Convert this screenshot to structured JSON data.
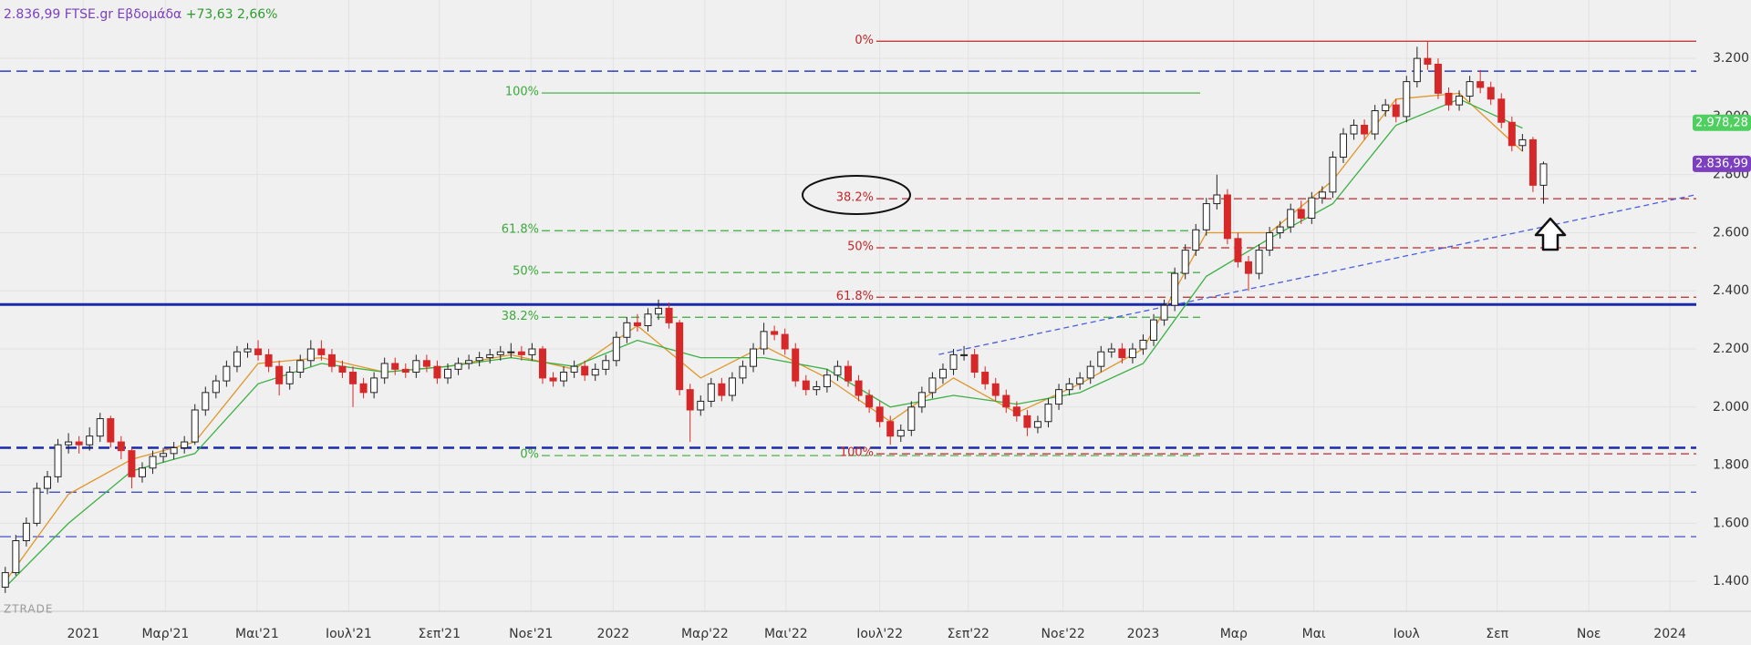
{
  "chart_data": {
    "type": "candlestick",
    "title": "2.836,99 FTSE.gr Εβδομάδα",
    "change_label": "+73,63 2,66%",
    "watermark": "ZTRADE",
    "title_color": "#7b3fbf",
    "change_color": "#2e9c2e",
    "up_color": "#ffffff",
    "down_color": "#d62828",
    "grid": true,
    "xlim": [
      -0.5,
      160.5
    ],
    "xticks": [
      {
        "value": 7.4,
        "label": "2021"
      },
      {
        "value": 15.2,
        "label": "Μαρ'21"
      },
      {
        "value": 23.9,
        "label": "Μαι'21"
      },
      {
        "value": 32.6,
        "label": "Ιουλ'21"
      },
      {
        "value": 41.2,
        "label": "Σεπ'21"
      },
      {
        "value": 49.9,
        "label": "Νοε'21"
      },
      {
        "value": 57.7,
        "label": "2022"
      },
      {
        "value": 66.4,
        "label": "Μαρ'22"
      },
      {
        "value": 74.1,
        "label": "Μαι'22"
      },
      {
        "value": 83.0,
        "label": "Ιουλ'22"
      },
      {
        "value": 91.4,
        "label": "Σεπ'22"
      },
      {
        "value": 100.4,
        "label": "Νοε'22"
      },
      {
        "value": 108,
        "label": "2023"
      },
      {
        "value": 116.6,
        "label": "Μαρ"
      },
      {
        "value": 124.2,
        "label": "Μαι"
      },
      {
        "value": 133,
        "label": "Ιουλ"
      },
      {
        "value": 141.6,
        "label": "Σεπ"
      },
      {
        "value": 150.3,
        "label": "Νοε"
      },
      {
        "value": 158,
        "label": "2024"
      }
    ],
    "ylim": [
      1297,
      3401
    ],
    "yticks": [
      {
        "value": 1400,
        "label": "1.400"
      },
      {
        "value": 1600,
        "label": "1.600"
      },
      {
        "value": 1800,
        "label": "1.800"
      },
      {
        "value": 2000,
        "label": "2.000"
      },
      {
        "value": 2200,
        "label": "2.200"
      },
      {
        "value": 2400,
        "label": "2.400"
      },
      {
        "value": 2600,
        "label": "2.600"
      },
      {
        "value": 2800,
        "label": "2.800"
      },
      {
        "value": 3000,
        "label": "3.000"
      },
      {
        "value": 3200,
        "label": "3.200"
      }
    ],
    "candles": {
      "open": [
        1380,
        1430,
        1540,
        1600,
        1720,
        1760,
        1870,
        1880,
        1870,
        1900,
        1960,
        1880,
        1850,
        1760,
        1790,
        1830,
        1840,
        1860,
        1880,
        1990,
        2050,
        2090,
        2140,
        2190,
        2200,
        2180,
        2140,
        2080,
        2120,
        2160,
        2200,
        2180,
        2140,
        2120,
        2080,
        2050,
        2100,
        2150,
        2130,
        2120,
        2160,
        2140,
        2100,
        2130,
        2150,
        2160,
        2170,
        2180,
        2190,
        2190,
        2180,
        2200,
        2100,
        2090,
        2120,
        2140,
        2110,
        2130,
        2160,
        2240,
        2290,
        2280,
        2320,
        2340,
        2290,
        2060,
        1990,
        2020,
        2080,
        2040,
        2100,
        2140,
        2200,
        2260,
        2250,
        2200,
        2090,
        2060,
        2070,
        2110,
        2140,
        2090,
        2040,
        2000,
        1950,
        1900,
        1920,
        2000,
        2050,
        2100,
        2130,
        2180,
        2180,
        2120,
        2080,
        2040,
        2000,
        1970,
        1930,
        1950,
        2010,
        2060,
        2080,
        2100,
        2140,
        2190,
        2200,
        2170,
        2200,
        2230,
        2300,
        2350,
        2460,
        2540,
        2610,
        2700,
        2730,
        2580,
        2500,
        2460,
        2540,
        2600,
        2620,
        2680,
        2650,
        2720,
        2740,
        2860,
        2940,
        2970,
        2940,
        3020,
        3040,
        3000,
        3120,
        3200,
        3180,
        3080,
        3040,
        3070,
        3120,
        3100,
        3060,
        2980,
        2900,
        2920,
        2763.36
      ],
      "high": [
        1450,
        1560,
        1620,
        1740,
        1780,
        1890,
        1910,
        1900,
        1930,
        1980,
        1970,
        1900,
        1860,
        1810,
        1850,
        1860,
        1880,
        1900,
        2010,
        2070,
        2110,
        2160,
        2210,
        2220,
        2230,
        2200,
        2160,
        2140,
        2180,
        2230,
        2230,
        2200,
        2160,
        2140,
        2100,
        2120,
        2170,
        2170,
        2150,
        2180,
        2180,
        2160,
        2150,
        2170,
        2180,
        2190,
        2200,
        2210,
        2220,
        2210,
        2220,
        2210,
        2120,
        2140,
        2160,
        2160,
        2150,
        2180,
        2260,
        2310,
        2320,
        2340,
        2370,
        2360,
        2300,
        2080,
        2040,
        2100,
        2100,
        2120,
        2160,
        2220,
        2290,
        2280,
        2270,
        2220,
        2110,
        2090,
        2130,
        2160,
        2160,
        2110,
        2060,
        2020,
        1970,
        1940,
        2020,
        2070,
        2120,
        2150,
        2200,
        2210,
        2200,
        2140,
        2100,
        2060,
        2020,
        1990,
        1970,
        2030,
        2080,
        2100,
        2120,
        2160,
        2210,
        2220,
        2220,
        2220,
        2250,
        2320,
        2370,
        2480,
        2560,
        2630,
        2720,
        2800,
        2750,
        2600,
        2520,
        2560,
        2620,
        2640,
        2700,
        2710,
        2740,
        2760,
        2880,
        2960,
        2990,
        2990,
        3040,
        3060,
        3060,
        3140,
        3240,
        3260,
        3200,
        3100,
        3090,
        3140,
        3160,
        3120,
        3080,
        3000,
        2940,
        2930,
        2845
      ],
      "low": [
        1360,
        1420,
        1520,
        1590,
        1700,
        1740,
        1840,
        1840,
        1850,
        1880,
        1860,
        1820,
        1720,
        1740,
        1770,
        1810,
        1820,
        1840,
        1870,
        1970,
        2030,
        2070,
        2120,
        2170,
        2160,
        2120,
        2040,
        2060,
        2100,
        2140,
        2160,
        2120,
        2100,
        2000,
        2030,
        2030,
        2080,
        2110,
        2100,
        2100,
        2120,
        2080,
        2080,
        2110,
        2130,
        2140,
        2150,
        2160,
        2170,
        2160,
        2160,
        2080,
        2070,
        2070,
        2100,
        2090,
        2090,
        2110,
        2140,
        2220,
        2260,
        2260,
        2300,
        2270,
        2040,
        1880,
        1970,
        2000,
        2020,
        2020,
        2080,
        2120,
        2180,
        2230,
        2180,
        2070,
        2040,
        2040,
        2050,
        2090,
        2070,
        2020,
        1980,
        1930,
        1870,
        1880,
        1900,
        1980,
        2030,
        2080,
        2110,
        2160,
        2100,
        2060,
        2020,
        1980,
        1950,
        1900,
        1910,
        1930,
        1990,
        2040,
        2060,
        2080,
        2120,
        2170,
        2150,
        2150,
        2180,
        2210,
        2280,
        2330,
        2440,
        2520,
        2590,
        2680,
        2560,
        2480,
        2400,
        2440,
        2520,
        2580,
        2600,
        2630,
        2630,
        2700,
        2720,
        2840,
        2920,
        2920,
        2920,
        3000,
        2980,
        2980,
        3100,
        3160,
        3060,
        3020,
        3020,
        3050,
        3080,
        3040,
        2960,
        2880,
        2880,
        2740,
        2700
      ],
      "close": [
        1430,
        1540,
        1600,
        1720,
        1760,
        1870,
        1880,
        1870,
        1900,
        1960,
        1880,
        1850,
        1760,
        1790,
        1830,
        1840,
        1860,
        1880,
        1990,
        2050,
        2090,
        2140,
        2190,
        2200,
        2180,
        2140,
        2080,
        2120,
        2160,
        2200,
        2180,
        2140,
        2120,
        2080,
        2050,
        2100,
        2150,
        2130,
        2120,
        2160,
        2140,
        2100,
        2130,
        2150,
        2160,
        2170,
        2180,
        2190,
        2190,
        2180,
        2200,
        2100,
        2090,
        2120,
        2140,
        2110,
        2130,
        2160,
        2240,
        2290,
        2280,
        2320,
        2340,
        2290,
        2060,
        1990,
        2020,
        2080,
        2040,
        2100,
        2140,
        2200,
        2260,
        2250,
        2200,
        2090,
        2060,
        2070,
        2110,
        2140,
        2090,
        2040,
        2000,
        1950,
        1900,
        1920,
        2000,
        2050,
        2100,
        2130,
        2180,
        2180,
        2120,
        2080,
        2040,
        2000,
        1970,
        1930,
        1950,
        2010,
        2060,
        2080,
        2100,
        2140,
        2190,
        2200,
        2170,
        2200,
        2230,
        2300,
        2350,
        2460,
        2540,
        2610,
        2700,
        2730,
        2580,
        2500,
        2460,
        2540,
        2600,
        2620,
        2680,
        2650,
        2720,
        2740,
        2860,
        2940,
        2970,
        2940,
        3020,
        3040,
        3000,
        3120,
        3200,
        3180,
        3080,
        3040,
        3070,
        3120,
        3100,
        3060,
        2980,
        2900,
        2920,
        2763.36,
        2836.99
      ]
    },
    "ma_lines": {
      "x": [
        0,
        6,
        12,
        18,
        24,
        30,
        36,
        42,
        48,
        54,
        60,
        66,
        72,
        78,
        84,
        90,
        96,
        102,
        108,
        114,
        120,
        126,
        132,
        138,
        144
      ],
      "series": [
        {
          "color": "#e0962a",
          "values": [
            1400,
            1700,
            1820,
            1880,
            2150,
            2170,
            2120,
            2140,
            2180,
            2130,
            2280,
            2100,
            2210,
            2100,
            1950,
            2100,
            1980,
            2080,
            2200,
            2600,
            2600,
            2780,
            3060,
            3080,
            2880
          ]
        },
        {
          "color": "#3cb043",
          "values": [
            1380,
            1600,
            1780,
            1840,
            2080,
            2150,
            2120,
            2140,
            2170,
            2140,
            2230,
            2170,
            2170,
            2130,
            2000,
            2040,
            2010,
            2050,
            2150,
            2450,
            2580,
            2700,
            2970,
            3060,
            2960
          ]
        }
      ]
    },
    "h_lines": [
      {
        "value": 3156,
        "color": "#2e3fbf",
        "width": 1.5,
        "dashed": true
      },
      {
        "value": 2353,
        "color": "#1a2aa8",
        "width": 3,
        "dashed": false
      },
      {
        "value": 1860,
        "color": "#1a2aa8",
        "width": 2.5,
        "dashed": true
      },
      {
        "value": 1707,
        "color": "#2e3fbf",
        "width": 1.2,
        "dashed": true
      },
      {
        "value": 1554,
        "color": "#2e3fbf",
        "width": 1.2,
        "dashed": true
      }
    ],
    "trendline": {
      "x": [
        88.6,
        160.5
      ],
      "values": [
        2181,
        2731
      ],
      "color": "#4a5ee0"
    },
    "fib_red": {
      "color": "#c0282a",
      "levels": [
        {
          "value": 3259,
          "label": "0%"
        },
        {
          "value": 2717,
          "label": "38.2%"
        },
        {
          "value": 2548,
          "label": "50%"
        },
        {
          "value": 2378,
          "label": "61.8%"
        },
        {
          "value": 1839,
          "label": "100%"
        }
      ]
    },
    "fib_green": {
      "color": "#3aaa3a",
      "levels": [
        {
          "value": 3081,
          "label": "100%"
        },
        {
          "value": 2607,
          "label": "61.8%"
        },
        {
          "value": 2463,
          "label": "50%"
        },
        {
          "value": 2309,
          "label": "38.2%"
        },
        {
          "value": 1833,
          "label": "0%"
        }
      ]
    },
    "price_labels": [
      {
        "value": 2978.28,
        "label": "2.978,28",
        "color": "#4fcf5f"
      },
      {
        "value": 2836.99,
        "label": "2.836,99",
        "color": "#7b3fbf"
      }
    ]
  }
}
